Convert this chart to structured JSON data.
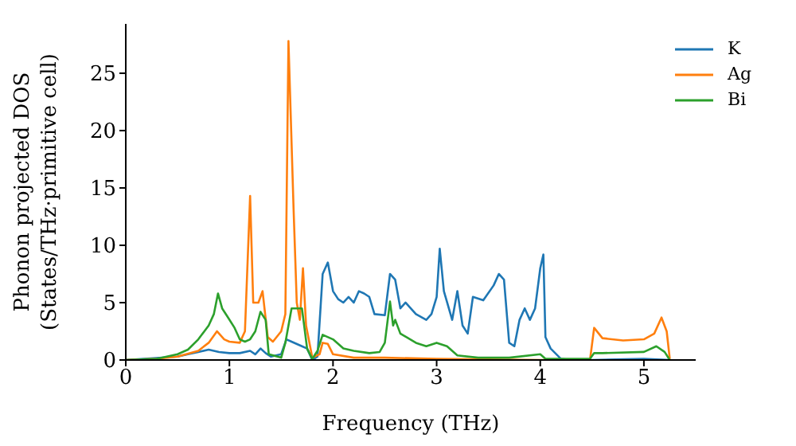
{
  "chart_data": {
    "type": "line",
    "xlabel": "Frequency (THz)",
    "ylabel": "Phonon projected DOS\n(States/THz·primitive cell)",
    "xlim": [
      0,
      5.5
    ],
    "ylim": [
      0,
      29.3
    ],
    "xticks": [
      0,
      1,
      2,
      3,
      4,
      5
    ],
    "yticks": [
      0,
      5,
      10,
      15,
      20,
      25
    ],
    "legend": "top right",
    "marker": "none",
    "line_style": "solid",
    "series": [
      {
        "name": "K",
        "color": "#1f77b4",
        "x": [
          0,
          0.5,
          0.6,
          0.7,
          0.8,
          0.9,
          1.0,
          1.1,
          1.2,
          1.25,
          1.3,
          1.35,
          1.4,
          1.5,
          1.55,
          1.6,
          1.7,
          1.75,
          1.8,
          1.85,
          1.9,
          1.95,
          2.0,
          2.05,
          2.1,
          2.15,
          2.2,
          2.25,
          2.3,
          2.35,
          2.4,
          2.5,
          2.55,
          2.6,
          2.65,
          2.7,
          2.8,
          2.9,
          2.95,
          3.0,
          3.03,
          3.07,
          3.15,
          3.2,
          3.25,
          3.3,
          3.35,
          3.45,
          3.55,
          3.6,
          3.65,
          3.7,
          3.75,
          3.8,
          3.85,
          3.9,
          3.95,
          4.0,
          4.03,
          4.05,
          4.1,
          4.2,
          4.3,
          4.5,
          5.0,
          5.25
        ],
        "values": [
          0,
          0.3,
          0.5,
          0.7,
          0.9,
          0.7,
          0.6,
          0.6,
          0.8,
          0.5,
          1.0,
          0.6,
          0.3,
          0.5,
          1.8,
          1.6,
          1.2,
          1.0,
          0,
          0.3,
          7.5,
          8.5,
          6,
          5.3,
          5,
          5.5,
          5,
          6,
          5.8,
          5.5,
          4,
          3.9,
          7.5,
          7,
          4.5,
          5,
          4,
          3.5,
          4,
          5.5,
          9.7,
          6,
          3.5,
          6,
          3,
          2.3,
          5.5,
          5.2,
          6.5,
          7.5,
          7,
          1.5,
          1.2,
          3.5,
          4.5,
          3.5,
          4.5,
          8,
          9.2,
          2,
          1,
          0.1,
          0,
          0,
          0.1,
          0
        ]
      },
      {
        "name": "Ag",
        "color": "#ff7f0e",
        "x": [
          0,
          0.3,
          0.5,
          0.7,
          0.8,
          0.88,
          0.95,
          1.0,
          1.1,
          1.15,
          1.2,
          1.23,
          1.28,
          1.32,
          1.37,
          1.42,
          1.5,
          1.54,
          1.57,
          1.62,
          1.65,
          1.68,
          1.71,
          1.74,
          1.8,
          1.87,
          1.9,
          1.95,
          2.0,
          2.2,
          2.5,
          3.0,
          4.0,
          4.48,
          4.52,
          4.6,
          4.8,
          5.0,
          5.1,
          5.17,
          5.22,
          5.25
        ],
        "values": [
          0,
          0.1,
          0.3,
          0.8,
          1.5,
          2.5,
          1.8,
          1.6,
          1.5,
          2.5,
          14.3,
          5,
          5,
          6,
          2,
          1.6,
          2.5,
          4,
          27.8,
          13,
          5,
          3.5,
          8,
          3,
          0.2,
          0.5,
          1.5,
          1.4,
          0.5,
          0.2,
          0.2,
          0.1,
          0,
          0,
          2.8,
          1.9,
          1.7,
          1.8,
          2.3,
          3.7,
          2.5,
          0.1
        ]
      },
      {
        "name": "Bi",
        "color": "#2ca02c",
        "x": [
          0,
          0.3,
          0.5,
          0.6,
          0.7,
          0.8,
          0.85,
          0.89,
          0.93,
          0.98,
          1.05,
          1.1,
          1.15,
          1.2,
          1.25,
          1.3,
          1.35,
          1.38,
          1.5,
          1.54,
          1.6,
          1.7,
          1.75,
          1.8,
          1.85,
          1.9,
          2.0,
          2.1,
          2.2,
          2.35,
          2.45,
          2.5,
          2.55,
          2.58,
          2.6,
          2.65,
          2.8,
          2.9,
          3.0,
          3.1,
          3.2,
          3.4,
          3.7,
          4.0,
          4.05,
          4.48,
          4.52,
          4.6,
          5.0,
          5.12,
          5.2,
          5.25
        ],
        "values": [
          0,
          0.1,
          0.5,
          0.9,
          1.8,
          3,
          4,
          5.8,
          4.5,
          3.8,
          2.8,
          1.8,
          1.6,
          1.8,
          2.5,
          4.2,
          3.5,
          0.5,
          0.2,
          1.5,
          4.5,
          4.5,
          1,
          0.1,
          0.8,
          2.2,
          1.8,
          1,
          0.8,
          0.6,
          0.7,
          1.5,
          5.1,
          3,
          3.5,
          2.3,
          1.5,
          1.2,
          1.5,
          1.2,
          0.4,
          0.2,
          0.2,
          0.5,
          0.1,
          0.1,
          0.6,
          0.6,
          0.7,
          1.2,
          0.7,
          0
        ]
      }
    ]
  }
}
